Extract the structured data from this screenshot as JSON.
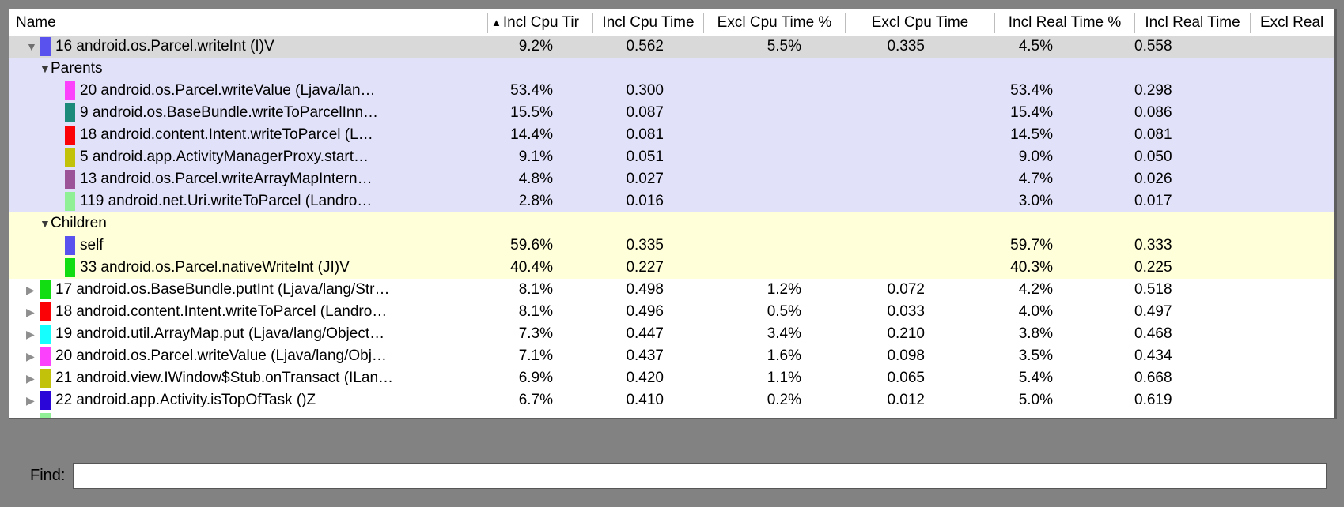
{
  "colors": {
    "frame_bg": "#828282",
    "row_bg": "#ffffff",
    "selected_row_bg": "#d9d9d9",
    "parents_bg": "#e1e1f9",
    "children_bg": "#ffffd9",
    "header_bg": "#ffffff"
  },
  "icons": {
    "sort_ascending": "▲",
    "expanded_triangle": "▼",
    "collapsed_triangle": "▶"
  },
  "table": {
    "columns": [
      {
        "label": "Name",
        "sorted": false
      },
      {
        "label": "Incl Cpu Tir",
        "sorted": true
      },
      {
        "label": "Incl Cpu Time",
        "sorted": false
      },
      {
        "label": "Excl Cpu Time %",
        "sorted": false
      },
      {
        "label": "Excl Cpu Time",
        "sorted": false
      },
      {
        "label": "Incl Real Time %",
        "sorted": false
      },
      {
        "label": "Incl Real Time",
        "sorted": false
      },
      {
        "label": "Excl Real",
        "sorted": false
      }
    ],
    "rows": [
      {
        "type": "method",
        "expanded": true,
        "selected": true,
        "color": "#5a52ee",
        "name": "16 android.os.Parcel.writeInt (I)V",
        "values": [
          "9.2%",
          "0.562",
          "5.5%",
          "0.335",
          "4.5%",
          "0.558"
        ]
      },
      {
        "type": "section",
        "section": "parents",
        "name": "Parents",
        "values": [
          "",
          "",
          "",
          "",
          "",
          ""
        ]
      },
      {
        "type": "child",
        "section": "parents",
        "color": "#fb41fb",
        "name": "20 android.os.Parcel.writeValue (Ljava/lan…",
        "values": [
          "53.4%",
          "0.300",
          "",
          "",
          "53.4%",
          "0.298"
        ]
      },
      {
        "type": "child",
        "section": "parents",
        "color": "#1b8a7a",
        "name": "9 android.os.BaseBundle.writeToParcelInn…",
        "values": [
          "15.5%",
          "0.087",
          "",
          "",
          "15.4%",
          "0.086"
        ]
      },
      {
        "type": "child",
        "section": "parents",
        "color": "#fb0207",
        "name": "18 android.content.Intent.writeToParcel (L…",
        "values": [
          "14.4%",
          "0.081",
          "",
          "",
          "14.5%",
          "0.081"
        ]
      },
      {
        "type": "child",
        "section": "parents",
        "color": "#c2c20a",
        "name": "5 android.app.ActivityManagerProxy.start…",
        "values": [
          "9.1%",
          "0.051",
          "",
          "",
          "9.0%",
          "0.050"
        ]
      },
      {
        "type": "child",
        "section": "parents",
        "color": "#9c5498",
        "name": "13 android.os.Parcel.writeArrayMapIntern…",
        "values": [
          "4.8%",
          "0.027",
          "",
          "",
          "4.7%",
          "0.026"
        ]
      },
      {
        "type": "child",
        "section": "parents",
        "color": "#90f095",
        "name": "119 android.net.Uri.writeToParcel (Landro…",
        "values": [
          "2.8%",
          "0.016",
          "",
          "",
          "3.0%",
          "0.017"
        ]
      },
      {
        "type": "section",
        "section": "children",
        "name": "Children",
        "values": [
          "",
          "",
          "",
          "",
          "",
          ""
        ]
      },
      {
        "type": "child",
        "section": "children",
        "color": "#5a52ee",
        "name": "self",
        "values": [
          "59.6%",
          "0.335",
          "",
          "",
          "59.7%",
          "0.333"
        ]
      },
      {
        "type": "child",
        "section": "children",
        "color": "#12dd12",
        "name": "33 android.os.Parcel.nativeWriteInt (JI)V",
        "values": [
          "40.4%",
          "0.227",
          "",
          "",
          "40.3%",
          "0.225"
        ]
      },
      {
        "type": "method",
        "expanded": false,
        "selected": false,
        "color": "#12dd12",
        "name": "17 android.os.BaseBundle.putInt (Ljava/lang/Str…",
        "values": [
          "8.1%",
          "0.498",
          "1.2%",
          "0.072",
          "4.2%",
          "0.518"
        ]
      },
      {
        "type": "method",
        "expanded": false,
        "selected": false,
        "color": "#fb0207",
        "name": "18 android.content.Intent.writeToParcel (Landro…",
        "values": [
          "8.1%",
          "0.496",
          "0.5%",
          "0.033",
          "4.0%",
          "0.497"
        ]
      },
      {
        "type": "method",
        "expanded": false,
        "selected": false,
        "color": "#16ffff",
        "name": "19 android.util.ArrayMap.put (Ljava/lang/Object…",
        "values": [
          "7.3%",
          "0.447",
          "3.4%",
          "0.210",
          "3.8%",
          "0.468"
        ]
      },
      {
        "type": "method",
        "expanded": false,
        "selected": false,
        "color": "#fb41fb",
        "name": "20 android.os.Parcel.writeValue (Ljava/lang/Obj…",
        "values": [
          "7.1%",
          "0.437",
          "1.6%",
          "0.098",
          "3.5%",
          "0.434"
        ]
      },
      {
        "type": "method",
        "expanded": false,
        "selected": false,
        "color": "#c2c20a",
        "name": "21 android.view.IWindow$Stub.onTransact (ILan…",
        "values": [
          "6.9%",
          "0.420",
          "1.1%",
          "0.065",
          "5.4%",
          "0.668"
        ]
      },
      {
        "type": "method",
        "expanded": false,
        "selected": false,
        "color": "#2a06d8",
        "name": "22 android.app.Activity.isTopOfTask ()Z",
        "values": [
          "6.7%",
          "0.410",
          "0.2%",
          "0.012",
          "5.0%",
          "0.619"
        ]
      },
      {
        "type": "partial",
        "expanded": false,
        "selected": false,
        "color": "#90f095",
        "name": "",
        "values": [
          "",
          "",
          "",
          "",
          "",
          ""
        ]
      }
    ]
  },
  "find": {
    "label": "Find:",
    "value": "",
    "placeholder": ""
  }
}
